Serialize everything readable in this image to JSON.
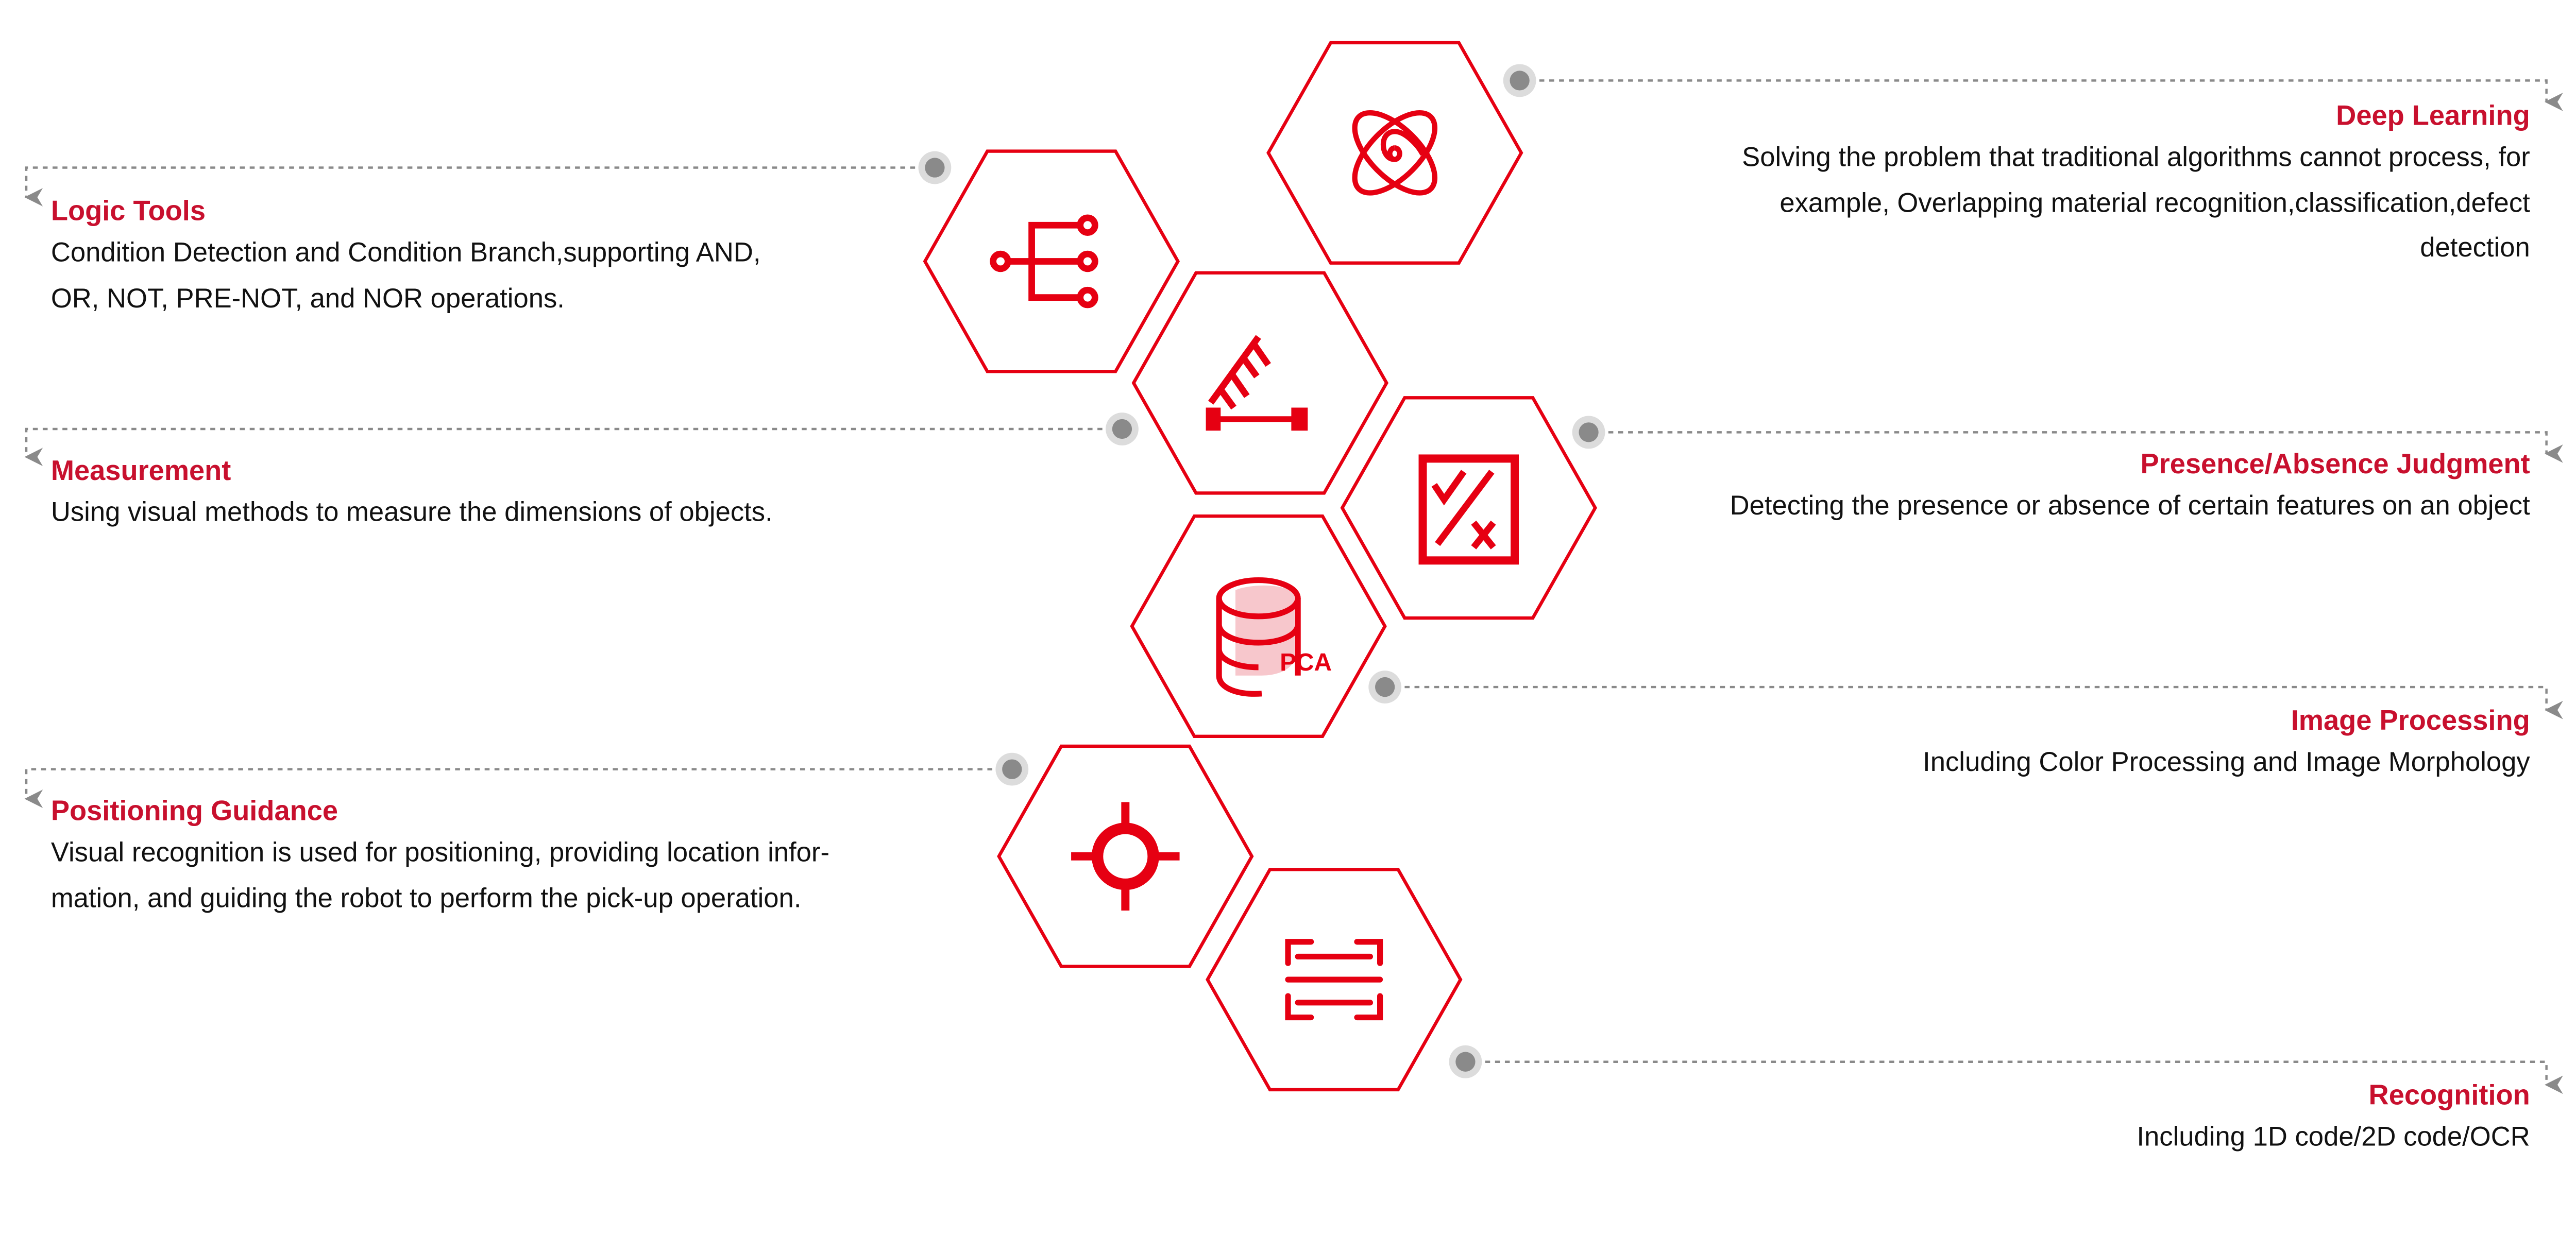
{
  "colors": {
    "accent": "#e60012",
    "title": "#c8102e",
    "connector": "#8a8a8a",
    "dot_halo": "#dcdcdc",
    "text": "#111111"
  },
  "features": [
    {
      "id": "deep-learning",
      "icon": "atom-spiral-icon",
      "title": "Deep Learning",
      "lines": [
        "Solving the problem that traditional algorithms cannot process, for",
        "example, Overlapping material recognition,classification,defect",
        "detection"
      ],
      "side": "right"
    },
    {
      "id": "logic-tools",
      "icon": "branch-tree-icon",
      "title": "Logic Tools",
      "lines": [
        "Condition Detection and Condition Branch,supporting AND,",
        "OR, NOT, PRE-NOT, and NOR operations."
      ],
      "side": "left"
    },
    {
      "id": "measurement",
      "icon": "ruler-icon",
      "title": "Measurement",
      "lines": [
        "Using visual methods to measure the dimensions of objects."
      ],
      "side": "left"
    },
    {
      "id": "presence-absence",
      "icon": "check-cross-board-icon",
      "title": "Presence/Absence Judgment",
      "lines": [
        "Detecting the presence or absence of certain features on an object"
      ],
      "side": "right"
    },
    {
      "id": "image-processing",
      "icon": "database-pca-icon",
      "icon_text": "PCA",
      "title": "Image Processing",
      "lines": [
        "Including Color Processing and Image Morphology"
      ],
      "side": "right"
    },
    {
      "id": "positioning-guidance",
      "icon": "crosshair-target-icon",
      "title": "Positioning Guidance",
      "lines": [
        "Visual recognition is used for positioning, providing location infor-",
        "mation, and guiding the robot to perform the pick-up operation."
      ],
      "side": "left"
    },
    {
      "id": "recognition",
      "icon": "scan-code-icon",
      "title": "Recognition",
      "lines": [
        "Including 1D code/2D code/OCR"
      ],
      "side": "right"
    }
  ]
}
